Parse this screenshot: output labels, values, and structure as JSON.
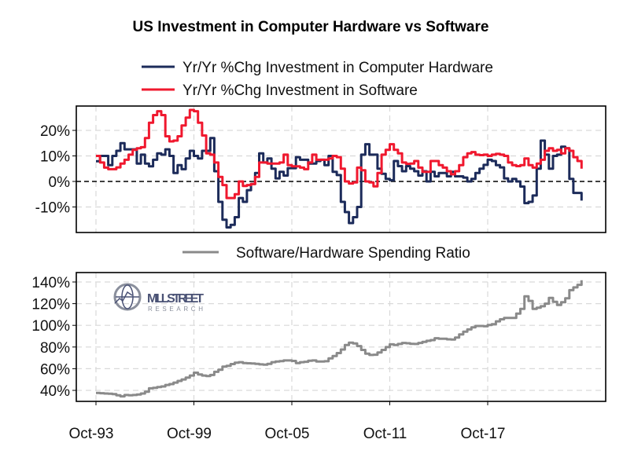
{
  "chart_data": [
    {
      "type": "line",
      "title": "US Investment in Computer Hardware vs Software",
      "xlabel": "",
      "ylabel": "",
      "ylim": [
        -20,
        30
      ],
      "yticks": [
        {
          "v": 20,
          "label": "20%"
        },
        {
          "v": 10,
          "label": "10%"
        },
        {
          "v": 0,
          "label": "0%"
        },
        {
          "v": -10,
          "label": "-10%"
        }
      ],
      "reference_line": {
        "y": 0,
        "style": "dashed",
        "color": "#000000"
      },
      "grid": true,
      "legend_placement": "top",
      "series": [
        {
          "name": "Yr/Yr %Chg Investment in Computer Hardware",
          "color": "#1c2b5a",
          "values": [
            7.9,
            10,
            10,
            6.4,
            10,
            12,
            15,
            12.6,
            12.6,
            12.6,
            7,
            10.5,
            7,
            5.9,
            8.5,
            11,
            10.5,
            12.6,
            10,
            3.3,
            6.4,
            4.8,
            9,
            12,
            10,
            9,
            12,
            12,
            17,
            4,
            -8,
            -15,
            -18,
            -17,
            -14,
            -6.5,
            -8,
            -3.4,
            -1,
            3.3,
            11,
            7.4,
            9,
            5,
            1.2,
            3.8,
            2.3,
            5.2,
            5.2,
            9.5,
            8.5,
            8.5,
            7,
            7,
            8,
            8.5,
            6.4,
            10,
            3.8,
            2.5,
            -8,
            -12,
            -16.3,
            -14,
            -10,
            10.5,
            14.6,
            10.5,
            10.5,
            5,
            3,
            1,
            0.5,
            8,
            6,
            4,
            6,
            5,
            4,
            2.3,
            4,
            0,
            3.8,
            2,
            3.3,
            3.3,
            2,
            3.8,
            2,
            2,
            1.5,
            0,
            1,
            3.3,
            5,
            6.5,
            8.5,
            8,
            6.4,
            5.5,
            1.2,
            0,
            1,
            0,
            -2,
            -8.5,
            -8,
            -5.5,
            5,
            16,
            10.5,
            5,
            10,
            10.5,
            13.6,
            13,
            1,
            -4.5,
            -4.5,
            -7.5
          ]
        },
        {
          "name": "Yr/Yr %Chg Investment in Software",
          "color": "#f0182e",
          "values": [
            10,
            7.4,
            5.4,
            4.8,
            4.8,
            5.5,
            7,
            8.5,
            10.5,
            12.4,
            13,
            13.4,
            17,
            23,
            26,
            27.5,
            26,
            17.7,
            15.7,
            16,
            17.7,
            21.9,
            25,
            28,
            27.5,
            23,
            18,
            11,
            10.5,
            7.4,
            1.8,
            -1.4,
            -6.5,
            -6.5,
            -5,
            0,
            -1.8,
            -1.4,
            -1,
            1.8,
            7.4,
            7.4,
            7,
            7,
            7,
            7.4,
            10.5,
            6.4,
            5.9,
            5.9,
            5.4,
            4.8,
            7.4,
            10.5,
            8.5,
            8.5,
            8.5,
            9,
            10,
            9.5,
            5,
            0,
            -0.8,
            -0.4,
            5.4,
            4.4,
            0,
            -0.4,
            -1.9,
            3.3,
            10.5,
            12.4,
            14.6,
            12.4,
            11,
            7.4,
            6.9,
            7,
            8,
            5.4,
            3.8,
            3.8,
            8,
            8,
            6.4,
            5.4,
            4,
            2.8,
            4,
            6.4,
            9.5,
            11,
            11.5,
            10.5,
            10.3,
            10.5,
            10,
            10.5,
            10.8,
            10.5,
            10,
            7.4,
            6.4,
            6,
            6.4,
            9,
            6.4,
            5.4,
            7,
            8.5,
            12,
            13,
            12,
            12.4,
            11,
            13,
            12,
            9.5,
            8,
            5
          ]
        }
      ]
    },
    {
      "type": "line",
      "title": "",
      "xlabel": "",
      "ylabel": "",
      "ylim": [
        35,
        145
      ],
      "yticks": [
        {
          "v": 140,
          "label": "140%"
        },
        {
          "v": 120,
          "label": "120%"
        },
        {
          "v": 100,
          "label": "100%"
        },
        {
          "v": 80,
          "label": "80%"
        },
        {
          "v": 60,
          "label": "60%"
        },
        {
          "v": 40,
          "label": "40%"
        }
      ],
      "grid": true,
      "legend_placement": "top",
      "series": [
        {
          "name": "Software/Hardware Spending Ratio",
          "color": "#8a8a8a",
          "values": [
            37.6,
            37.4,
            37.1,
            36.9,
            36.6,
            35.4,
            34.5,
            35.7,
            35.4,
            35.7,
            36.2,
            37.1,
            38.8,
            41.9,
            42.4,
            43.1,
            43.6,
            45,
            45.8,
            47.2,
            48.7,
            50.1,
            51.8,
            53.7,
            56.3,
            54.7,
            53.7,
            53.2,
            54.2,
            57.1,
            59,
            61.9,
            62.6,
            64.3,
            65.5,
            66,
            65.2,
            65,
            64.8,
            64.5,
            64,
            63.8,
            64.5,
            66,
            66.7,
            67,
            67.6,
            67.6,
            67.2,
            65.2,
            66,
            66.4,
            67.4,
            67.6,
            66.7,
            66.7,
            66.9,
            69.6,
            71.7,
            74.4,
            77.7,
            81.8,
            84,
            83.3,
            80.9,
            77.3,
            73.9,
            72.7,
            72.9,
            74.9,
            77.3,
            79.9,
            82.5,
            81.8,
            82.8,
            83.8,
            83.5,
            83,
            82.8,
            83.8,
            84.7,
            85.7,
            86.4,
            88.1,
            87.6,
            87.6,
            87.1,
            86.9,
            88.8,
            91.7,
            94.1,
            96.2,
            98.2,
            99.4,
            99.4,
            99.1,
            100.3,
            101.1,
            103.7,
            105.6,
            106.8,
            106.8,
            106.8,
            110.9,
            115.2,
            126.8,
            122.5,
            115.2,
            116.2,
            117.6,
            120,
            125.3,
            121.7,
            118.8,
            121.3,
            124.9,
            132.5,
            135,
            137.4,
            141.7
          ]
        }
      ]
    }
  ],
  "x_dates": [
    "1993-10",
    "1994-01",
    "1994-04",
    "1994-07",
    "1994-10",
    "1995-01",
    "1995-04",
    "1995-07",
    "1995-10",
    "1996-01",
    "1996-04",
    "1996-07",
    "1996-10",
    "1997-01",
    "1997-04",
    "1997-07",
    "1997-10",
    "1998-01",
    "1998-04",
    "1998-07",
    "1998-10",
    "1999-01",
    "1999-04",
    "1999-07",
    "1999-10",
    "2000-01",
    "2000-04",
    "2000-07",
    "2000-10",
    "2001-01",
    "2001-04",
    "2001-07",
    "2001-10",
    "2002-01",
    "2002-04",
    "2002-07",
    "2002-10",
    "2003-01",
    "2003-04",
    "2003-07",
    "2003-10",
    "2004-01",
    "2004-04",
    "2004-07",
    "2004-10",
    "2005-01",
    "2005-04",
    "2005-07",
    "2005-10",
    "2006-01",
    "2006-04",
    "2006-07",
    "2006-10",
    "2007-01",
    "2007-04",
    "2007-07",
    "2007-10",
    "2008-01",
    "2008-04",
    "2008-07",
    "2008-10",
    "2009-01",
    "2009-04",
    "2009-07",
    "2009-10",
    "2010-01",
    "2010-04",
    "2010-07",
    "2010-10",
    "2011-01",
    "2011-04",
    "2011-07",
    "2011-10",
    "2012-01",
    "2012-04",
    "2012-07",
    "2012-10",
    "2013-01",
    "2013-04",
    "2013-07",
    "2013-10",
    "2014-01",
    "2014-04",
    "2014-07",
    "2014-10",
    "2015-01",
    "2015-04",
    "2015-07",
    "2015-10",
    "2016-01",
    "2016-04",
    "2016-07",
    "2016-10",
    "2017-01",
    "2017-04",
    "2017-07",
    "2017-10",
    "2018-01",
    "2018-04",
    "2018-07",
    "2018-10",
    "2019-01",
    "2019-04",
    "2019-07",
    "2019-10",
    "2020-01",
    "2020-04",
    "2020-07",
    "2020-10",
    "2021-01",
    "2021-04",
    "2021-07",
    "2021-10",
    "2022-01",
    "2022-04",
    "2022-07",
    "2022-10",
    "2023-01",
    "2023-04",
    "2023-07"
  ],
  "x_ticks": [
    {
      "date": "1993-10",
      "label": "Oct-93"
    },
    {
      "date": "1999-10",
      "label": "Oct-99"
    },
    {
      "date": "2005-10",
      "label": "Oct-05"
    },
    {
      "date": "2011-10",
      "label": "Oct-11"
    },
    {
      "date": "2017-10",
      "label": "Oct-17"
    }
  ],
  "logo": {
    "line1": "MILL STREET",
    "line2": "RESEARCH",
    "color": "#4a5275"
  }
}
